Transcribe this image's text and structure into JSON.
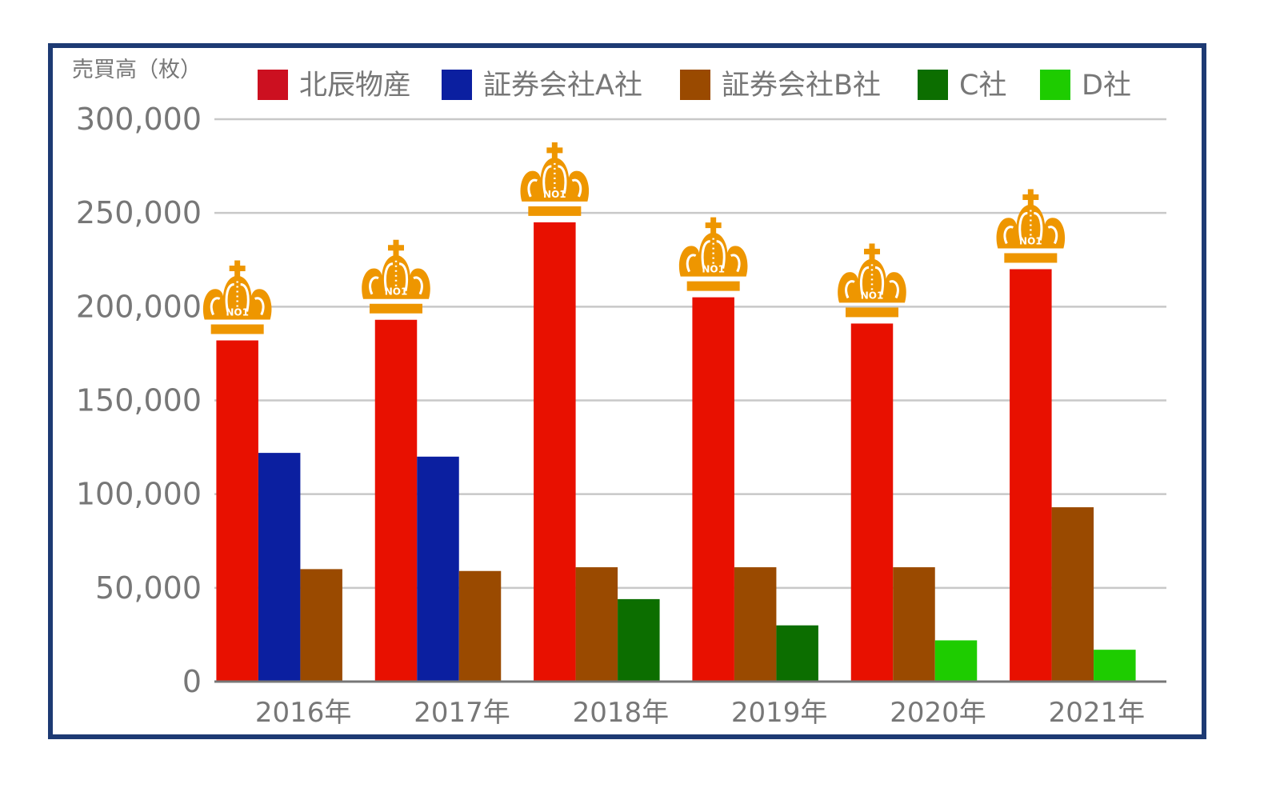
{
  "chart_data": {
    "type": "bar",
    "ylabel": "売買高（枚）",
    "ylim": [
      0,
      300000
    ],
    "yticks": [
      "0",
      "50,000",
      "100,000",
      "150,000",
      "200,000",
      "250,000",
      "300,000"
    ],
    "grid": true,
    "legend_position": "top",
    "badge_text": "NO1",
    "categories": [
      "2016年",
      "2017年",
      "2018年",
      "2019年",
      "2020年",
      "2021年"
    ],
    "series": [
      {
        "name": "北辰物産",
        "color": "#e81000",
        "legend_color": "#cc1020",
        "values": [
          182000,
          193000,
          245000,
          205000,
          191000,
          220000
        ]
      },
      {
        "name": "証券会社A社",
        "color": "#0b1fa0",
        "legend_color": "#0b1fa0",
        "values": [
          122000,
          120000,
          null,
          null,
          null,
          null
        ]
      },
      {
        "name": "証券会社B社",
        "color": "#9a4a00",
        "legend_color": "#9a4a00",
        "values": [
          60000,
          59000,
          61000,
          61000,
          61000,
          93000
        ]
      },
      {
        "name": "C社",
        "color": "#0c6e00",
        "legend_color": "#0c6e00",
        "values": [
          null,
          null,
          44000,
          30000,
          null,
          null
        ]
      },
      {
        "name": "D社",
        "color": "#1ecc00",
        "legend_color": "#1ecc00",
        "values": [
          null,
          null,
          null,
          null,
          22000,
          17000
        ]
      }
    ]
  }
}
